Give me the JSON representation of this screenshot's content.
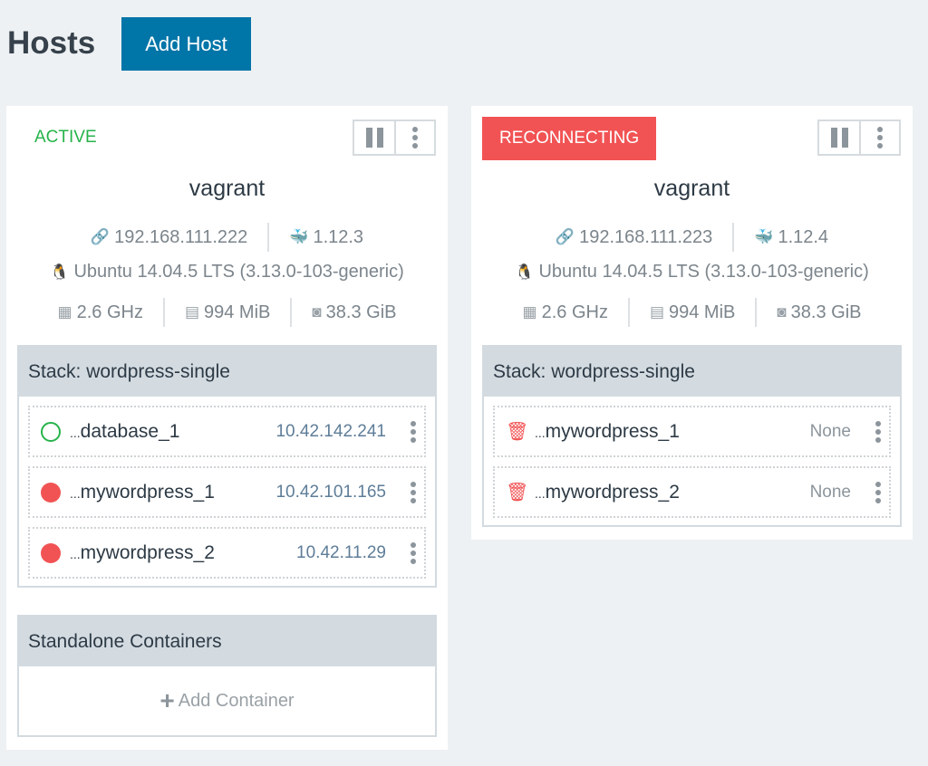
{
  "page": {
    "title": "Hosts",
    "add_host": "Add Host"
  },
  "colors": {
    "accent": "#0075a8",
    "active": "#27b34b",
    "reconnecting": "#f15354",
    "stopped": "#f15354"
  },
  "hosts": [
    {
      "status": "ACTIVE",
      "name": "vagrant",
      "ip": "192.168.111.222",
      "docker": "1.12.3",
      "os": "Ubuntu 14.04.5 LTS (3.13.0-103-generic)",
      "cpu": "2.6 GHz",
      "memory": "994 MiB",
      "storage": "38.3 GiB",
      "stack": {
        "label": "Stack: wordpress-single",
        "containers": [
          {
            "state": "running",
            "icon": "circle-outline-icon",
            "name": "database_1",
            "ip": "10.42.142.241"
          },
          {
            "state": "stopped",
            "icon": "circle-filled-icon",
            "name": "mywordpress_1",
            "ip": "10.42.101.165"
          },
          {
            "state": "stopped",
            "icon": "circle-filled-icon",
            "name": "mywordpress_2",
            "ip": "10.42.11.29"
          }
        ]
      },
      "standalone": {
        "label": "Standalone Containers",
        "add": "Add Container"
      }
    },
    {
      "status": "RECONNECTING",
      "name": "vagrant",
      "ip": "192.168.111.223",
      "docker": "1.12.4",
      "os": "Ubuntu 14.04.5 LTS (3.13.0-103-generic)",
      "cpu": "2.6 GHz",
      "memory": "994 MiB",
      "storage": "38.3 GiB",
      "stack": {
        "label": "Stack: wordpress-single",
        "containers": [
          {
            "state": "removed",
            "icon": "trash-icon",
            "name": "mywordpress_1",
            "ip": "None"
          },
          {
            "state": "removed",
            "icon": "trash-icon",
            "name": "mywordpress_2",
            "ip": "None"
          }
        ]
      }
    }
  ]
}
